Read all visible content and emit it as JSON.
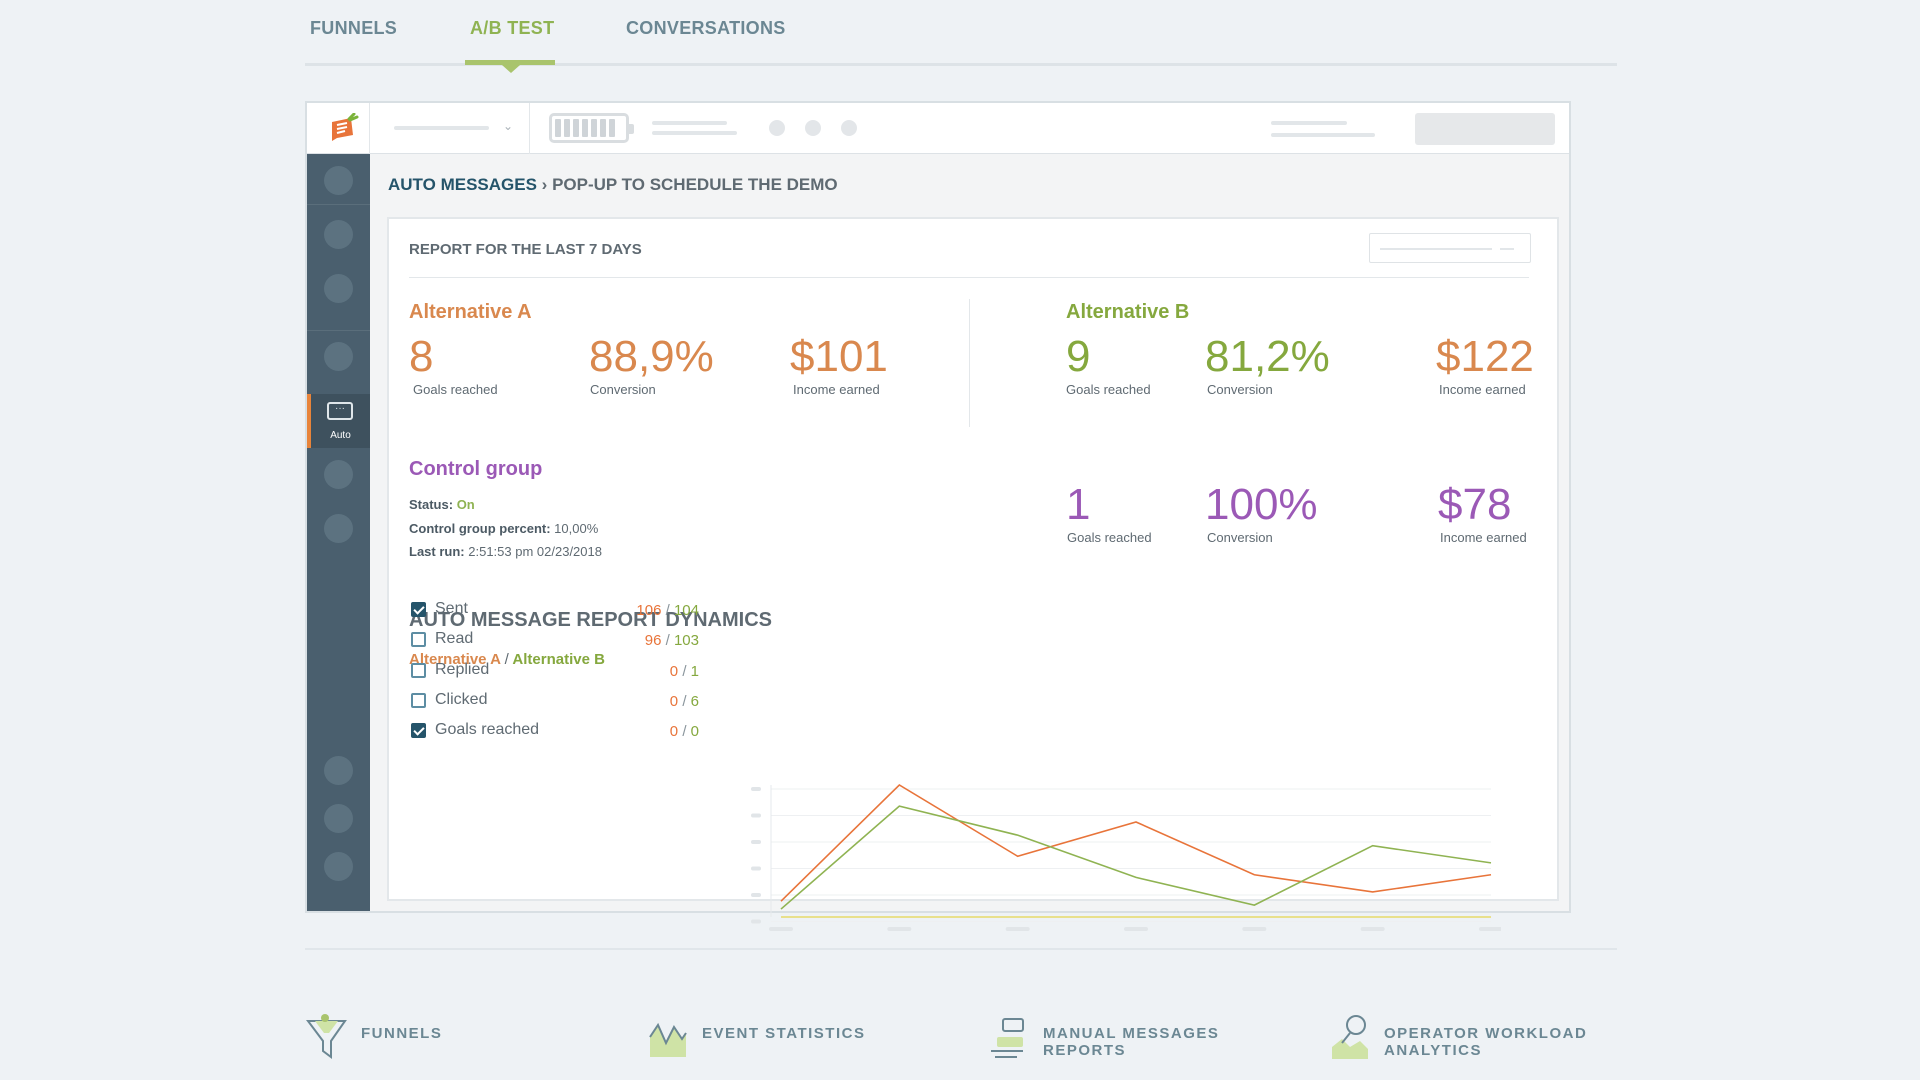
{
  "top_tabs": [
    {
      "label": "FUNNELS"
    },
    {
      "label": "A/B TEST"
    },
    {
      "label": "CONVERSATIONS"
    }
  ],
  "sidebar": {
    "active_label": "Auto"
  },
  "breadcrumb": {
    "section": "AUTO MESSAGES",
    "sep": "›",
    "page": "POP-UP TO SCHEDULE THE DEMO"
  },
  "report": {
    "title": "REPORT FOR THE LAST 7 DAYS",
    "alt_a": {
      "title": "Alternative A",
      "goals": "8",
      "goals_label": "Goals reached",
      "conversion": "88,9%",
      "conversion_label": "Conversion",
      "income": "$101",
      "income_label": "Income earned"
    },
    "alt_b": {
      "title": "Alternative B",
      "goals": "9",
      "goals_label": "Goals reached",
      "conversion": "81,2%",
      "conversion_label": "Conversion",
      "income": "$122",
      "income_label": "Income earned"
    },
    "control": {
      "title": "Control group",
      "status_label": "Status:",
      "status_value": "On",
      "percent_label": "Control group percent:",
      "percent_value": "10,00%",
      "lastrun_label": "Last run:",
      "lastrun_value": "2:51:53 pm 02/23/2018",
      "goals": "1",
      "goals_label": "Goals reached",
      "conversion": "100%",
      "conversion_label": "Conversion",
      "income": "$78",
      "income_label": "Income earned"
    }
  },
  "dynamics": {
    "title": "AUTO MESSAGE REPORT DYNAMICS",
    "legend_a": "Alternative A",
    "legend_sep": "/",
    "legend_b": "Alternative B",
    "metrics": [
      {
        "label": "Sent",
        "a": "106",
        "b": "104",
        "checked": true
      },
      {
        "label": "Read",
        "a": "96",
        "b": "103",
        "checked": false
      },
      {
        "label": "Replied",
        "a": "0",
        "b": "1",
        "checked": false
      },
      {
        "label": "Clicked",
        "a": "0",
        "b": "6",
        "checked": false
      },
      {
        "label": "Goals reached",
        "a": "0",
        "b": "0",
        "checked": true
      }
    ],
    "value_sep": "/"
  },
  "chart_data": {
    "type": "line",
    "x_points": 7,
    "ylim": [
      0,
      100
    ],
    "series": [
      {
        "color": "#e8743a",
        "values": [
          12,
          100,
          46,
          72,
          32,
          19,
          32
        ]
      },
      {
        "color": "#8fb352",
        "values": [
          6,
          84,
          62,
          30,
          9,
          54,
          41
        ]
      },
      {
        "color": "#e6d96a",
        "values": [
          0,
          0,
          0,
          0,
          0,
          0,
          0
        ]
      }
    ],
    "grid": true
  },
  "features": [
    {
      "label_1": "FUNNELS",
      "label_2": "",
      "icon": "funnel-icon"
    },
    {
      "label_1": "EVENT STATISTICS",
      "label_2": "",
      "icon": "event-statistics-icon"
    },
    {
      "label_1": "MANUAL MESSAGES",
      "label_2": "REPORTS",
      "icon": "manual-messages-icon"
    },
    {
      "label_1": "OPERATOR WORKLOAD",
      "label_2": "ANALYTICS",
      "icon": "operator-workload-icon"
    }
  ]
}
